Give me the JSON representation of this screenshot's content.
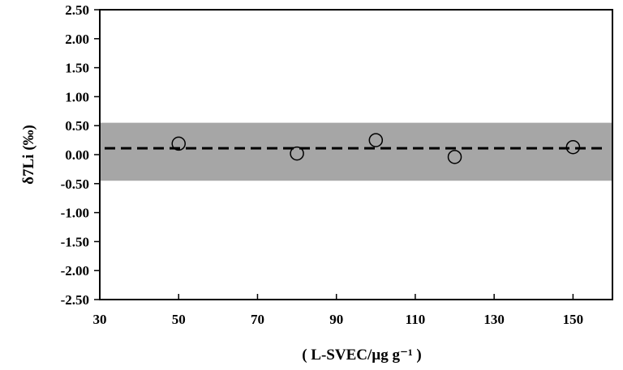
{
  "chart_data": {
    "type": "scatter",
    "title": "",
    "xlabel": "( L-SVEC/µg g⁻¹ )",
    "ylabel": "δ7Li (‰)",
    "xlim": [
      30,
      160
    ],
    "ylim": [
      -2.5,
      2.5
    ],
    "x_ticks": [
      "30",
      "50",
      "70",
      "90",
      "110",
      "130",
      "150"
    ],
    "x_tick_values": [
      30,
      50,
      70,
      90,
      110,
      130,
      150
    ],
    "y_ticks": [
      "2.50",
      "2.00",
      "1.50",
      "1.00",
      "0.50",
      "0.00",
      "-0.50",
      "-1.00",
      "-1.50",
      "-2.00",
      "-2.50"
    ],
    "y_tick_values": [
      2.5,
      2.0,
      1.5,
      1.0,
      0.5,
      0.0,
      -0.5,
      -1.0,
      -1.5,
      -2.0,
      -2.5
    ],
    "grid": false,
    "legend": "none",
    "series": [
      {
        "x": [
          50,
          80,
          100,
          120,
          150
        ],
        "y": [
          0.19,
          0.02,
          0.25,
          -0.04,
          0.13
        ],
        "marker": "open-circle",
        "color": "#000000"
      }
    ],
    "mean_line": {
      "y": 0.11,
      "style": "dashed",
      "color": "#000000"
    },
    "uncertainty_band": {
      "y_low": -0.45,
      "y_high": 0.55,
      "color": "#a6a6a6"
    }
  }
}
